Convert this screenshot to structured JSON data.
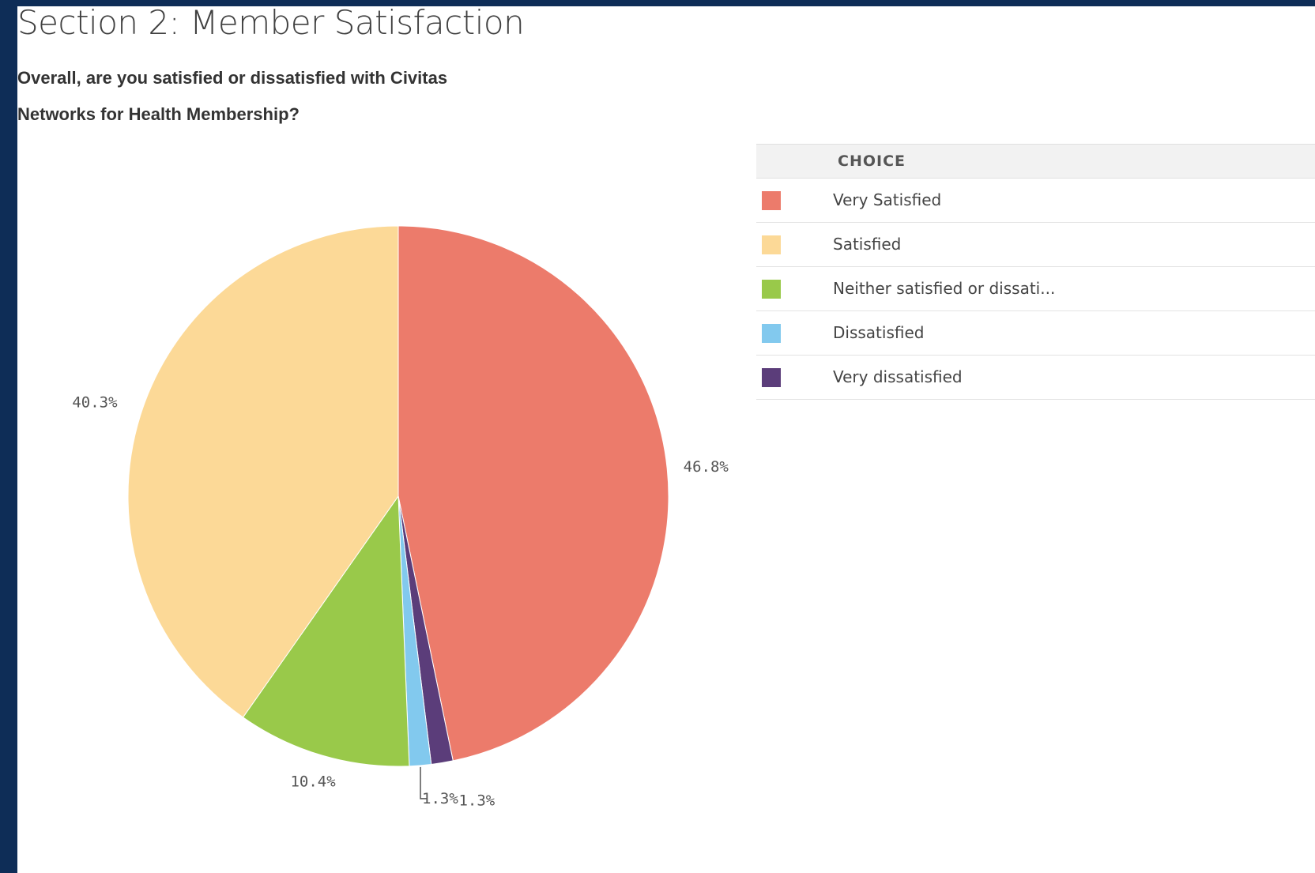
{
  "page": {
    "section_title": "Section 2: Member Satisfaction",
    "question": "Overall, are you satisfied or dissatisfied with Civitas Networks for Health Membership?"
  },
  "legend": {
    "header": "CHOICE"
  },
  "chart_data": {
    "type": "pie",
    "title": "",
    "start_angle_deg": 0,
    "direction": "clockwise",
    "slices": [
      {
        "label": "Very Satisfied",
        "legend_label": "Very Satisfied",
        "value": 46.8,
        "display": "46.8%",
        "color": "#ec7b6b"
      },
      {
        "label": "Very dissatisfied",
        "legend_label": "Very dissatisfied",
        "value": 1.3,
        "display": "1.3%",
        "color": "#5b3d7a"
      },
      {
        "label": "Dissatisfied",
        "legend_label": "Dissatisfied",
        "value": 1.3,
        "display": "1.3%",
        "color": "#82c9ee"
      },
      {
        "label": "Neither satisfied or dissatisfied",
        "legend_label": "Neither satisfied or dissati...",
        "value": 10.4,
        "display": "10.4%",
        "color": "#99c94a"
      },
      {
        "label": "Satisfied",
        "legend_label": "Satisfied",
        "value": 40.3,
        "display": "40.3%",
        "color": "#fcd997"
      }
    ],
    "legend_order": [
      "Very Satisfied",
      "Satisfied",
      "Neither satisfied or dissatisfied",
      "Dissatisfied",
      "Very dissatisfied"
    ],
    "legend_placement": "right"
  }
}
